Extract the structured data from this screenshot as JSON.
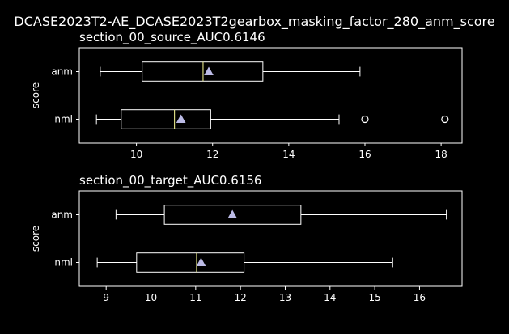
{
  "figure": {
    "suptitle": "DCASE2023T2-AE_DCASE2023T2gearbox_masking_factor_280_anm_score"
  },
  "colors": {
    "background": "#000000",
    "foreground": "#ffffff",
    "median": "#ffff99",
    "mean_marker": "#bcbbe6"
  },
  "chart_data": [
    {
      "type": "boxplot",
      "orientation": "horizontal",
      "title": "section_00_source_AUC0.6146",
      "ylabel": "score",
      "categories": [
        "anm",
        "nml"
      ],
      "xlim": [
        8.5,
        18.55
      ],
      "xticks": [
        10,
        12,
        14,
        16,
        18
      ],
      "boxes": [
        {
          "name": "anm",
          "whisker_low": 9.05,
          "q1": 10.15,
          "median": 11.75,
          "q3": 13.32,
          "whisker_high": 15.87,
          "mean": 11.9,
          "outliers": []
        },
        {
          "name": "nml",
          "whisker_low": 8.95,
          "q1": 9.6,
          "median": 11.0,
          "q3": 11.95,
          "whisker_high": 15.32,
          "mean": 11.17,
          "outliers": [
            16.0,
            18.1
          ]
        }
      ]
    },
    {
      "type": "boxplot",
      "orientation": "horizontal",
      "title": "section_00_target_AUC0.6156",
      "ylabel": "score",
      "categories": [
        "anm",
        "nml"
      ],
      "xlim": [
        8.4,
        16.95
      ],
      "xticks": [
        9,
        10,
        11,
        12,
        13,
        14,
        15,
        16
      ],
      "boxes": [
        {
          "name": "anm",
          "whisker_low": 9.22,
          "q1": 10.3,
          "median": 11.5,
          "q3": 13.35,
          "whisker_high": 16.6,
          "mean": 11.82,
          "outliers": []
        },
        {
          "name": "nml",
          "whisker_low": 8.8,
          "q1": 9.68,
          "median": 11.02,
          "q3": 12.08,
          "whisker_high": 15.4,
          "mean": 11.12,
          "outliers": []
        }
      ]
    }
  ]
}
